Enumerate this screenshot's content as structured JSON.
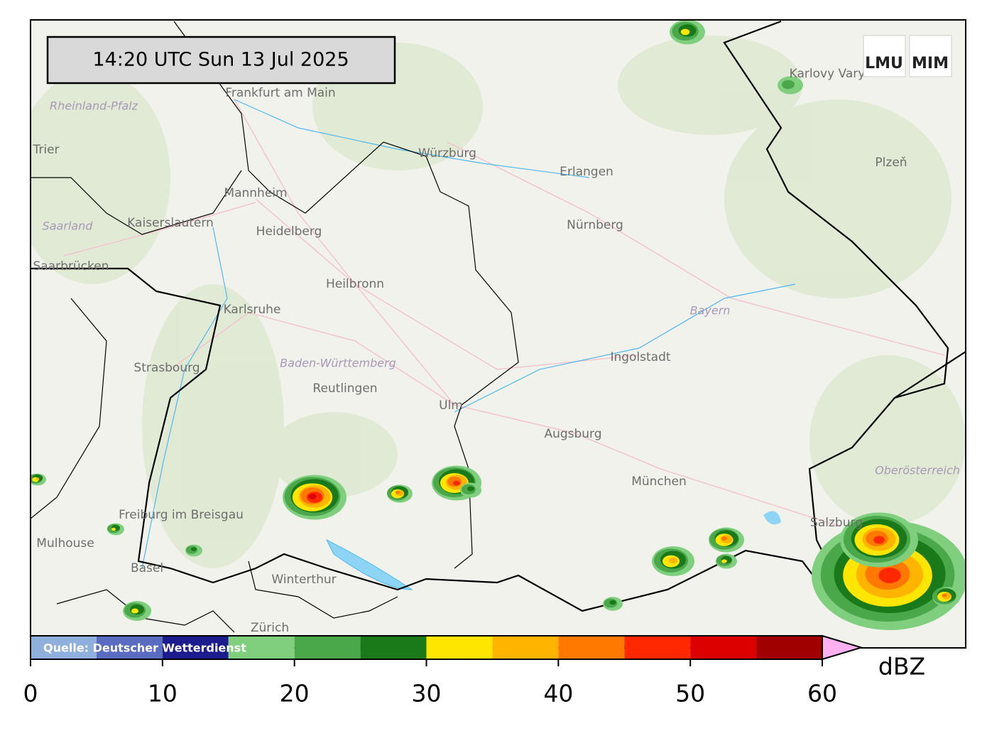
{
  "timestamp": "14:20 UTC  Sun 13 Jul 2025",
  "logos": [
    "LMU",
    "MIM"
  ],
  "source": "Quelle: Deutscher Wetterdienst",
  "places": [
    {
      "label": "Frankfurt am Main",
      "kind": "city"
    },
    {
      "label": "Würzburg",
      "kind": "city"
    },
    {
      "label": "Erlangen",
      "kind": "city"
    },
    {
      "label": "Nürnberg",
      "kind": "city"
    },
    {
      "label": "Mannheim",
      "kind": "city"
    },
    {
      "label": "Kaiserslautern",
      "kind": "city"
    },
    {
      "label": "Heidelberg",
      "kind": "city"
    },
    {
      "label": "Saarland",
      "kind": "region"
    },
    {
      "label": "Rheinland-Pfalz",
      "kind": "region"
    },
    {
      "label": "Trier",
      "kind": "city"
    },
    {
      "label": "Saarbrücken",
      "kind": "city"
    },
    {
      "label": "Heilbronn",
      "kind": "city"
    },
    {
      "label": "Karlsruhe",
      "kind": "city"
    },
    {
      "label": "Bayern",
      "kind": "region"
    },
    {
      "label": "Ingolstadt",
      "kind": "city"
    },
    {
      "label": "Strasbourg",
      "kind": "city"
    },
    {
      "label": "Baden-Württemberg",
      "kind": "region"
    },
    {
      "label": "Reutlingen",
      "kind": "city"
    },
    {
      "label": "Ulm",
      "kind": "city"
    },
    {
      "label": "Augsburg",
      "kind": "city"
    },
    {
      "label": "München",
      "kind": "city"
    },
    {
      "label": "Oberösterreich",
      "kind": "region"
    },
    {
      "label": "Freiburg im Breisgau",
      "kind": "city"
    },
    {
      "label": "Mulhouse",
      "kind": "city"
    },
    {
      "label": "Basel",
      "kind": "city"
    },
    {
      "label": "Winterthur",
      "kind": "city"
    },
    {
      "label": "Zürich",
      "kind": "city"
    },
    {
      "label": "Salzburg",
      "kind": "city"
    },
    {
      "label": "Karlovy Vary",
      "kind": "city"
    },
    {
      "label": "Plzeň",
      "kind": "city"
    }
  ],
  "colorbar": {
    "unit": "dBZ",
    "lim": [
      0,
      60
    ],
    "bounds": [
      0,
      5,
      10,
      15,
      20,
      25,
      30,
      35,
      40,
      45,
      50,
      55,
      60
    ],
    "colors": [
      "#8fb0dc",
      "#5a6cc0",
      "#1c1c8e",
      "#7fcf7f",
      "#4aa84a",
      "#1a7a1a",
      "#ffe600",
      "#ffb400",
      "#ff7800",
      "#ff2800",
      "#dc0000",
      "#a00000"
    ],
    "extend_color": "#ffb0f0",
    "ticks": [
      0,
      10,
      20,
      30,
      40,
      50,
      60
    ]
  }
}
